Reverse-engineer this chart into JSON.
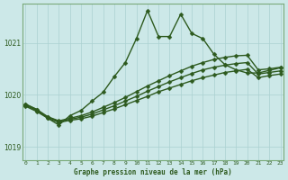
{
  "title": "Graphe pression niveau de la mer (hPa)",
  "bg": "#cce8e8",
  "lc": "#2d5a1e",
  "grid_color": "#aad0d0",
  "ylim": [
    1018.75,
    1021.75
  ],
  "xlim": [
    -0.3,
    23.3
  ],
  "yticks": [
    1019,
    1020,
    1021
  ],
  "xticks": [
    0,
    1,
    2,
    3,
    4,
    5,
    6,
    7,
    8,
    9,
    10,
    11,
    12,
    13,
    14,
    15,
    16,
    17,
    18,
    19,
    20,
    21,
    22,
    23
  ],
  "main": [
    1019.82,
    1019.72,
    1019.55,
    1019.42,
    1019.6,
    1019.7,
    1019.88,
    1020.05,
    1020.35,
    1020.62,
    1021.08,
    1021.62,
    1021.12,
    1021.12,
    1021.55,
    1021.18,
    1021.08,
    1020.78,
    1020.58,
    1020.48,
    1020.42,
    1020.42,
    1020.47,
    1020.52
  ],
  "lin1": [
    1019.82,
    1019.72,
    1019.58,
    1019.5,
    1019.55,
    1019.6,
    1019.67,
    1019.76,
    1019.85,
    1019.95,
    1020.06,
    1020.17,
    1020.27,
    1020.37,
    1020.46,
    1020.55,
    1020.62,
    1020.68,
    1020.72,
    1020.75,
    1020.76,
    1020.48,
    1020.5,
    1020.53
  ],
  "lin2": [
    1019.8,
    1019.7,
    1019.57,
    1019.49,
    1019.53,
    1019.57,
    1019.63,
    1019.71,
    1019.79,
    1019.88,
    1019.97,
    1020.07,
    1020.16,
    1020.25,
    1020.33,
    1020.41,
    1020.48,
    1020.53,
    1020.57,
    1020.6,
    1020.62,
    1020.4,
    1020.43,
    1020.46
  ],
  "lin3": [
    1019.78,
    1019.68,
    1019.55,
    1019.47,
    1019.51,
    1019.54,
    1019.59,
    1019.66,
    1019.73,
    1019.81,
    1019.89,
    1019.97,
    1020.06,
    1020.13,
    1020.2,
    1020.27,
    1020.33,
    1020.38,
    1020.43,
    1020.46,
    1020.49,
    1020.33,
    1020.37,
    1020.4
  ]
}
